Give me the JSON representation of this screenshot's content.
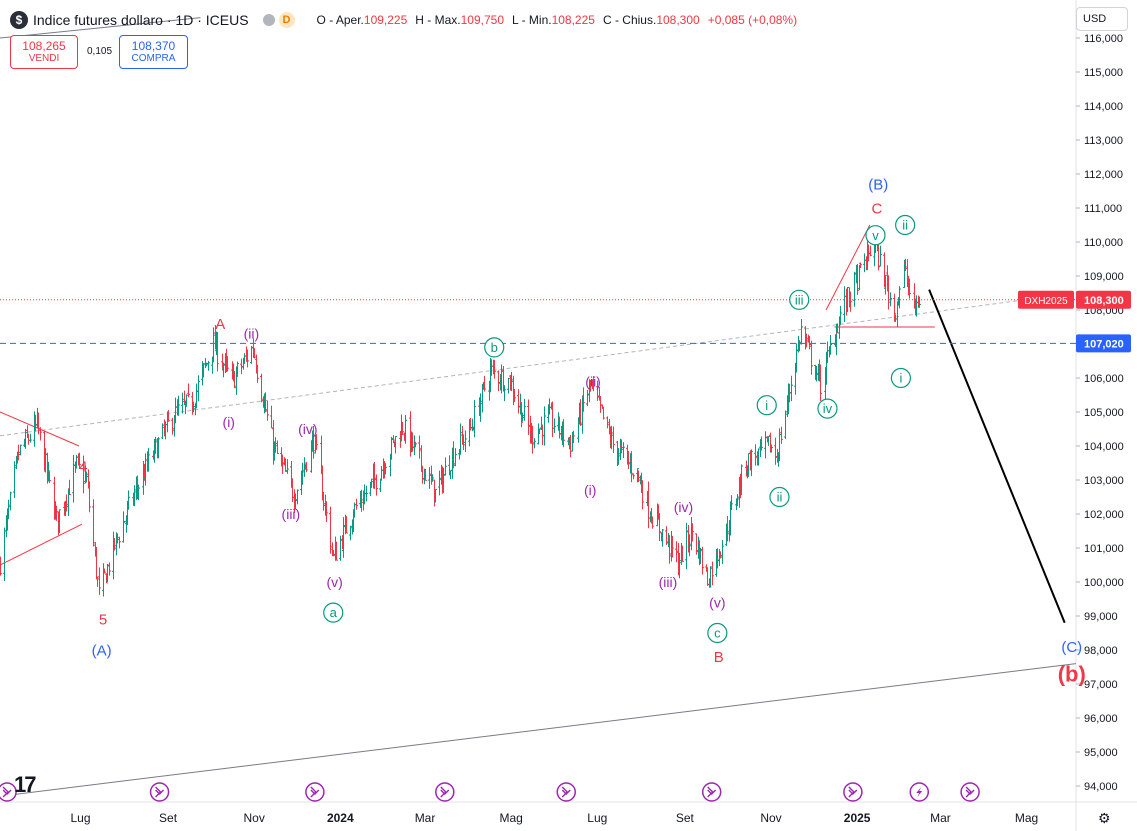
{
  "header": {
    "symbol_icon": "dollar-sign-icon",
    "symbol_glyph": "$",
    "title": "Indice futures dollaro · 1D · ICEUS",
    "d_badge": "D",
    "ohlc": [
      {
        "k": "O - Aper.",
        "v": "109,225"
      },
      {
        "k": "H - Max.",
        "v": "109,750"
      },
      {
        "k": "L - Min.",
        "v": "108,225"
      },
      {
        "k": "C - Chius.",
        "v": "108,300"
      },
      {
        "k": "",
        "v": "+0,085 (+0,08%)"
      }
    ]
  },
  "trade": {
    "sell_price": "108,265",
    "sell_label": "VENDI",
    "spread": "0,105",
    "buy_price": "108,370",
    "buy_label": "COMPRA"
  },
  "currency": "USD",
  "chart_data": {
    "type": "candlestick",
    "symbol": "DXH2025",
    "last_price": 108.3,
    "last_label": "108,300",
    "hline_price": 107.02,
    "hline_label": "107,020",
    "ylim": [
      93.6,
      116.3
    ],
    "y_ticks": [
      94,
      95,
      96,
      97,
      98,
      99,
      100,
      101,
      102,
      103,
      104,
      105,
      106,
      107,
      108,
      109,
      110,
      111,
      112,
      113,
      114,
      115,
      116
    ],
    "x_ticks": [
      {
        "label": "Lug",
        "date": "2023-07-01"
      },
      {
        "label": "Set",
        "date": "2023-09-01"
      },
      {
        "label": "Nov",
        "date": "2023-11-01"
      },
      {
        "label": "2024",
        "date": "2024-01-01",
        "bold": true
      },
      {
        "label": "Mar",
        "date": "2024-03-01"
      },
      {
        "label": "Mag",
        "date": "2024-05-01"
      },
      {
        "label": "Lug",
        "date": "2024-07-01"
      },
      {
        "label": "Set",
        "date": "2024-09-01"
      },
      {
        "label": "Nov",
        "date": "2024-11-01"
      },
      {
        "label": "2025",
        "date": "2025-01-01",
        "bold": true
      },
      {
        "label": "Mar",
        "date": "2025-03-01"
      },
      {
        "label": "Mag",
        "date": "2025-05-01"
      }
    ],
    "xlim": [
      "2023-05-05",
      "2025-06-05"
    ],
    "price_path": [
      [
        "2023-05-05",
        100.6
      ],
      [
        "2023-05-18",
        103.8
      ],
      [
        "2023-05-31",
        104.6
      ],
      [
        "2023-06-14",
        101.8
      ],
      [
        "2023-06-28",
        103.4
      ],
      [
        "2023-07-05",
        103.0
      ],
      [
        "2023-07-14",
        99.6
      ],
      [
        "2023-07-26",
        101.2
      ],
      [
        "2023-08-08",
        102.6
      ],
      [
        "2023-08-24",
        104.0
      ],
      [
        "2023-09-05",
        104.9
      ],
      [
        "2023-09-18",
        105.3
      ],
      [
        "2023-10-03",
        107.0
      ],
      [
        "2023-10-16",
        105.9
      ],
      [
        "2023-10-31",
        106.9
      ],
      [
        "2023-11-14",
        104.0
      ],
      [
        "2023-11-29",
        102.6
      ],
      [
        "2023-12-13",
        104.2
      ],
      [
        "2023-12-27",
        100.7
      ],
      [
        "2024-01-10",
        102.1
      ],
      [
        "2024-01-24",
        102.9
      ],
      [
        "2024-02-14",
        104.6
      ],
      [
        "2024-03-08",
        102.6
      ],
      [
        "2024-03-21",
        103.8
      ],
      [
        "2024-04-02",
        104.5
      ],
      [
        "2024-04-16",
        106.2
      ],
      [
        "2024-04-30",
        105.9
      ],
      [
        "2024-05-15",
        104.3
      ],
      [
        "2024-05-28",
        104.8
      ],
      [
        "2024-06-12",
        104.1
      ],
      [
        "2024-06-26",
        105.8
      ],
      [
        "2024-07-11",
        104.1
      ],
      [
        "2024-07-29",
        103.2
      ],
      [
        "2024-08-06",
        102.2
      ],
      [
        "2024-08-27",
        100.6
      ],
      [
        "2024-09-06",
        101.5
      ],
      [
        "2024-09-17",
        100.1
      ],
      [
        "2024-09-30",
        101.5
      ],
      [
        "2024-10-14",
        103.5
      ],
      [
        "2024-10-31",
        104.0
      ],
      [
        "2024-11-05",
        103.7
      ],
      [
        "2024-11-22",
        107.4
      ],
      [
        "2024-12-06",
        105.8
      ],
      [
        "2024-12-20",
        107.9
      ],
      [
        "2025-01-02",
        109.0
      ],
      [
        "2025-01-13",
        110.0
      ],
      [
        "2025-01-27",
        107.9
      ],
      [
        "2025-02-03",
        109.2
      ],
      [
        "2025-02-10",
        108.0
      ],
      [
        "2025-02-14",
        108.3
      ]
    ],
    "trendlines": [
      {
        "from": [
          "2023-05-05",
          104.3
        ],
        "to": [
          "2025-06-05",
          108.5
        ],
        "color": "#b2b5be",
        "dashed": true,
        "width": 1
      },
      {
        "from": [
          "2023-05-05",
          93.7
        ],
        "to": [
          "2025-06-05",
          97.6
        ],
        "color": "#787b86",
        "dashed": false,
        "width": 1
      },
      {
        "from": [
          "2023-05-05",
          116.0
        ],
        "to": [
          "2023-09-24",
          116.6
        ],
        "color": "#787b86",
        "dashed": false,
        "width": 1
      },
      {
        "from": [
          "2023-05-05",
          105.0
        ],
        "to": [
          "2023-06-30",
          104.0
        ],
        "color": "#f23645",
        "dashed": false,
        "width": 1
      },
      {
        "from": [
          "2023-05-05",
          100.5
        ],
        "to": [
          "2023-07-02",
          101.7
        ],
        "color": "#f23645",
        "dashed": false,
        "width": 1
      },
      {
        "from": [
          "2024-12-10",
          108.0
        ],
        "to": [
          "2025-01-10",
          110.5
        ],
        "color": "#f23645",
        "dashed": false,
        "width": 1
      },
      {
        "from": [
          "2024-12-16",
          107.5
        ],
        "to": [
          "2025-02-25",
          107.5
        ],
        "color": "#f23645",
        "dashed": false,
        "width": 1
      },
      {
        "from": [
          "2025-02-21",
          108.6
        ],
        "to": [
          "2025-05-28",
          98.8
        ],
        "color": "#000000",
        "dashed": false,
        "width": 2
      }
    ],
    "wave_labels": [
      {
        "text": "5",
        "x": "2023-07-17",
        "y": 98.9,
        "color": "#f23645",
        "style": "plain",
        "size": 15
      },
      {
        "text": "(A)",
        "x": "2023-07-16",
        "y": 98.0,
        "color": "#2962ff",
        "style": "plain",
        "size": 15
      },
      {
        "text": "4",
        "x": "2023-07-03",
        "y": 103.4,
        "color": "#f23645",
        "style": "plain",
        "size": 15
      },
      {
        "text": "A",
        "x": "2023-10-08",
        "y": 107.6,
        "color": "#f23645",
        "style": "plain",
        "size": 15
      },
      {
        "text": "(i)",
        "x": "2023-10-14",
        "y": 104.7,
        "color": "#9c27b0",
        "style": "plain",
        "size": 14
      },
      {
        "text": "(ii)",
        "x": "2023-10-30",
        "y": 107.3,
        "color": "#9c27b0",
        "style": "plain",
        "size": 14
      },
      {
        "text": "(iii)",
        "x": "2023-11-27",
        "y": 102.0,
        "color": "#9c27b0",
        "style": "plain",
        "size": 14
      },
      {
        "text": "(iv)",
        "x": "2023-12-09",
        "y": 104.5,
        "color": "#9c27b0",
        "style": "plain",
        "size": 14
      },
      {
        "text": "(v)",
        "x": "2023-12-28",
        "y": 100.0,
        "color": "#9c27b0",
        "style": "plain",
        "size": 14
      },
      {
        "text": "a",
        "x": "2023-12-27",
        "y": 99.1,
        "color": "#089981",
        "style": "circle",
        "size": 13
      },
      {
        "text": "b",
        "x": "2024-04-19",
        "y": 106.9,
        "color": "#089981",
        "style": "circle",
        "size": 13
      },
      {
        "text": "(i)",
        "x": "2024-06-26",
        "y": 102.7,
        "color": "#9c27b0",
        "style": "plain",
        "size": 14
      },
      {
        "text": "(ii)",
        "x": "2024-06-28",
        "y": 105.9,
        "color": "#9c27b0",
        "style": "plain",
        "size": 14
      },
      {
        "text": "(iii)",
        "x": "2024-08-20",
        "y": 100.0,
        "color": "#9c27b0",
        "style": "plain",
        "size": 14
      },
      {
        "text": "(iv)",
        "x": "2024-08-31",
        "y": 102.2,
        "color": "#9c27b0",
        "style": "plain",
        "size": 14
      },
      {
        "text": "(v)",
        "x": "2024-09-24",
        "y": 99.4,
        "color": "#9c27b0",
        "style": "plain",
        "size": 14
      },
      {
        "text": "c",
        "x": "2024-09-24",
        "y": 98.5,
        "color": "#089981",
        "style": "circle",
        "size": 13
      },
      {
        "text": "B",
        "x": "2024-09-25",
        "y": 97.8,
        "color": "#f23645",
        "style": "plain",
        "size": 15
      },
      {
        "text": "i",
        "x": "2024-10-29",
        "y": 105.2,
        "color": "#089981",
        "style": "circle",
        "size": 13
      },
      {
        "text": "ii",
        "x": "2024-11-07",
        "y": 102.5,
        "color": "#089981",
        "style": "circle",
        "size": 13
      },
      {
        "text": "iii",
        "x": "2024-11-21",
        "y": 108.3,
        "color": "#089981",
        "style": "circle",
        "size": 13
      },
      {
        "text": "iv",
        "x": "2024-12-11",
        "y": 105.1,
        "color": "#089981",
        "style": "circle",
        "size": 13
      },
      {
        "text": "v",
        "x": "2025-01-14",
        "y": 110.2,
        "color": "#089981",
        "style": "circle",
        "size": 13
      },
      {
        "text": "(B)",
        "x": "2025-01-16",
        "y": 111.7,
        "color": "#2962ff",
        "style": "plain",
        "size": 15
      },
      {
        "text": "C",
        "x": "2025-01-15",
        "y": 111.0,
        "color": "#f23645",
        "style": "plain",
        "size": 15
      },
      {
        "text": "ii",
        "x": "2025-02-04",
        "y": 110.5,
        "color": "#089981",
        "style": "circle",
        "size": 13
      },
      {
        "text": "i",
        "x": "2025-02-01",
        "y": 106.0,
        "color": "#089981",
        "style": "circle",
        "size": 13
      },
      {
        "text": "(C)",
        "x": "2025-06-02",
        "y": 98.1,
        "color": "#2962ff",
        "style": "plain",
        "size": 15
      },
      {
        "text": "(b)",
        "x": "2025-06-02",
        "y": 97.3,
        "color": "#f23645",
        "style": "plain-bold",
        "size": 22
      }
    ],
    "event_icons": [
      "2023-05-10",
      "2023-08-26",
      "2023-12-14",
      "2024-03-15",
      "2024-06-09",
      "2024-09-20",
      "2024-12-29",
      "2025-02-14",
      "2025-03-22"
    ],
    "highlight_event": "2025-02-14",
    "colors": {
      "up": "#089981",
      "down": "#f23645",
      "last": "#f23645",
      "hline": "#2962ff"
    }
  },
  "footer": {
    "logo": "17",
    "settings_icon": "gear-icon"
  }
}
